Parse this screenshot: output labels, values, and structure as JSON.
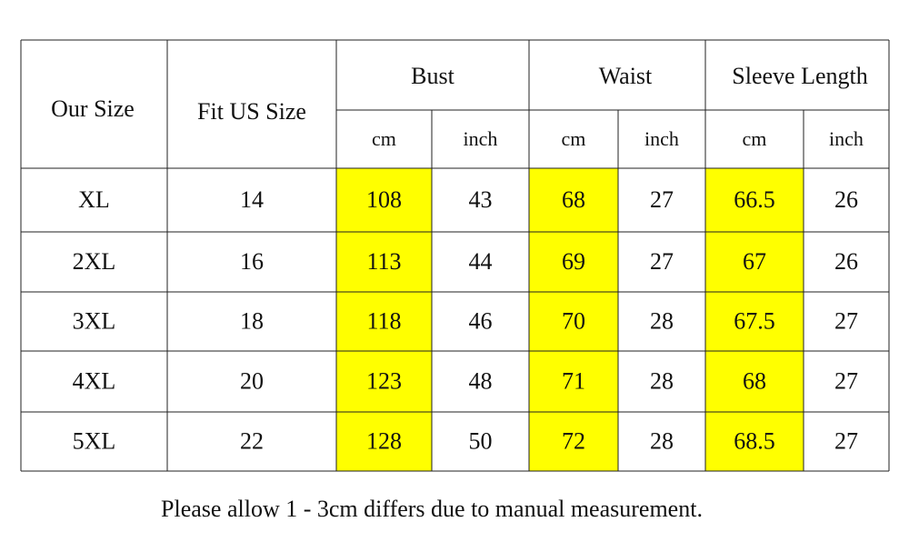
{
  "table": {
    "header": {
      "size": "Our Size",
      "us_size": "Fit US Size",
      "groups": [
        "Bust",
        "Waist",
        "Sleeve Length"
      ],
      "units": [
        "cm",
        "inch",
        "cm",
        "inch",
        "cm",
        "inch"
      ]
    },
    "rows": [
      [
        "XL",
        "14",
        "108",
        "43",
        "68",
        "27",
        "66.5",
        "26"
      ],
      [
        "2XL",
        "16",
        "113",
        "44",
        "69",
        "27",
        "67",
        "26"
      ],
      [
        "3XL",
        "18",
        "118",
        "46",
        "70",
        "28",
        "67.5",
        "27"
      ],
      [
        "4XL",
        "20",
        "123",
        "48",
        "71",
        "28",
        "68",
        "27"
      ],
      [
        "5XL",
        "22",
        "128",
        "50",
        "72",
        "28",
        "68.5",
        "27"
      ]
    ]
  },
  "note": "Please allow 1 - 3cm differs due to manual measurement."
}
